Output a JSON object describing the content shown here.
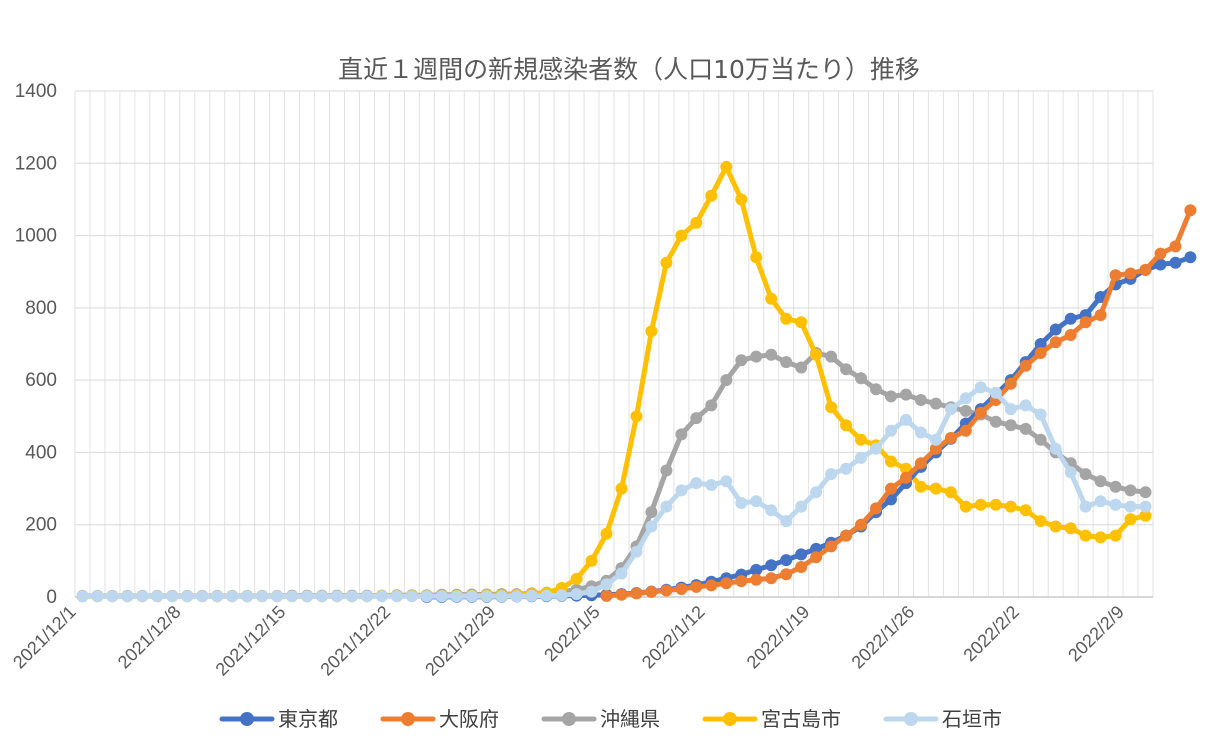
{
  "chart_data": {
    "type": "line",
    "title": "直近１週間の新規感染者数（人口10万当たり）推移",
    "xlabel": "",
    "ylabel": "",
    "ylim": [
      0,
      1400
    ],
    "yticks": [
      "0",
      "200",
      "400",
      "600",
      "800",
      "1000",
      "1200",
      "1400"
    ],
    "x_start": "2021/12/1",
    "num_days": 72,
    "x_tick_labels": [
      "2021/12/1",
      "2021/12/8",
      "2021/12/15",
      "2021/12/22",
      "2021/12/29",
      "2022/1/5",
      "2022/1/12",
      "2022/1/19",
      "2022/1/26",
      "2022/2/2",
      "2022/2/9"
    ],
    "grid": true,
    "legend_position": "bottom",
    "series": [
      {
        "name": "東京都",
        "color": "#4472C4",
        "start_day": 23,
        "values": [
          0.2,
          0.4,
          0.5,
          0.7,
          0.9,
          1.2,
          1.6,
          2.1,
          2.6,
          3.2,
          4,
          5,
          6.5,
          8,
          11,
          15,
          20,
          26,
          33,
          42,
          52,
          62,
          75,
          88,
          102,
          118,
          133,
          150,
          170,
          195,
          235,
          270,
          315,
          360,
          400,
          438,
          480,
          520,
          560,
          600,
          650,
          700,
          740,
          770,
          780,
          830,
          865,
          880,
          905,
          920,
          925,
          940
        ]
      },
      {
        "name": "大阪府",
        "color": "#ED7D31",
        "start_day": 35,
        "values": [
          3,
          6,
          10,
          14,
          18,
          22,
          28,
          32,
          38,
          44,
          48,
          52,
          63,
          83,
          110,
          140,
          170,
          200,
          245,
          300,
          330,
          370,
          410,
          440,
          460,
          510,
          545,
          590,
          640,
          675,
          705,
          725,
          760,
          780,
          890,
          895,
          905,
          950,
          970,
          1070
        ]
      },
      {
        "name": "沖縄県",
        "color": "#A5A5A5",
        "start_day": 0,
        "values": [
          3,
          3,
          3,
          3,
          3,
          3,
          3,
          3,
          3,
          3,
          3,
          3,
          3,
          3,
          4,
          4,
          4,
          4,
          4,
          4,
          4,
          5,
          5,
          5,
          6,
          6,
          7,
          7,
          8,
          8,
          10,
          12,
          15,
          20,
          30,
          45,
          80,
          140,
          235,
          350,
          450,
          495,
          530,
          600,
          655,
          665,
          670,
          650,
          635,
          675,
          665,
          630,
          605,
          575,
          555,
          560,
          545,
          535,
          525,
          515,
          505,
          485,
          475,
          465,
          435,
          400,
          370,
          340,
          320,
          305,
          295,
          290
        ]
      },
      {
        "name": "宮古島市",
        "color": "#FFC000",
        "start_day": 0,
        "values": [
          2,
          2,
          2,
          2,
          2,
          2,
          2,
          2,
          2,
          2,
          2,
          2,
          2,
          2,
          2,
          2,
          2,
          2,
          2,
          2,
          3,
          3,
          3,
          3,
          3,
          4,
          4,
          5,
          5,
          6,
          8,
          12,
          25,
          50,
          100,
          175,
          300,
          500,
          735,
          925,
          1000,
          1035,
          1110,
          1190,
          1100,
          940,
          825,
          770,
          760,
          670,
          525,
          475,
          435,
          420,
          375,
          355,
          305,
          300,
          290,
          250,
          255,
          255,
          250,
          240,
          210,
          195,
          190,
          170,
          165,
          170,
          215,
          225
        ]
      },
      {
        "name": "石垣市",
        "color": "#BDD7EE",
        "start_day": 0,
        "values": [
          2,
          2,
          2,
          2,
          2,
          2,
          2,
          2,
          2,
          2,
          2,
          2,
          2,
          2,
          2,
          2,
          2,
          2,
          2,
          2,
          2,
          2,
          2,
          2,
          2,
          2,
          2,
          2,
          2,
          2,
          3,
          4,
          5,
          8,
          15,
          35,
          65,
          125,
          195,
          250,
          295,
          315,
          310,
          320,
          260,
          265,
          240,
          210,
          250,
          290,
          340,
          355,
          385,
          410,
          460,
          490,
          455,
          435,
          520,
          550,
          580,
          565,
          520,
          530,
          505,
          410,
          345,
          250,
          265,
          255,
          250,
          250
        ]
      }
    ]
  }
}
